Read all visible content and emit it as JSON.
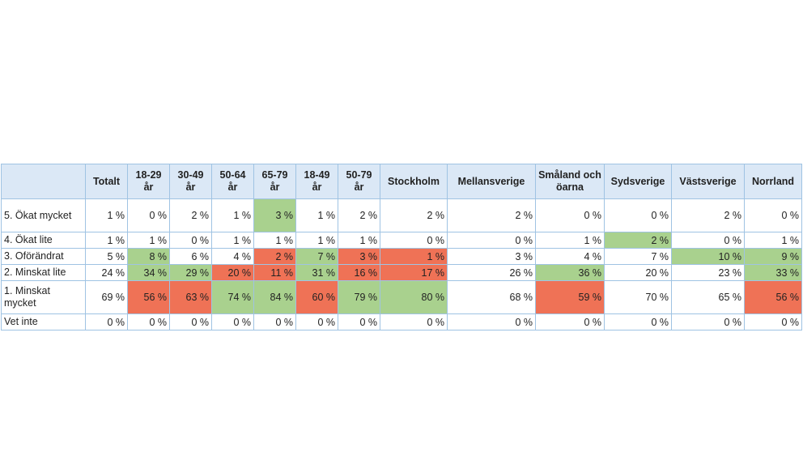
{
  "table": {
    "headers": [
      "",
      "Totalt",
      "18-29 år",
      "30-49 år",
      "50-64 år",
      "65-79 år",
      "18-49 år",
      "50-79 år",
      "Stockholm",
      "Mellansverige",
      "Småland och öarna",
      "Sydsverige",
      "Västsverige",
      "Norrland"
    ],
    "rows": [
      {
        "label": "5. Ökat mycket",
        "values": [
          "1 %",
          "0 %",
          "2 %",
          "1 %",
          "3 %",
          "1 %",
          "2 %",
          "2 %",
          "2 %",
          "0 %",
          "0 %",
          "2 %",
          "0 %"
        ]
      },
      {
        "label": "4. Ökat lite",
        "values": [
          "1 %",
          "1 %",
          "0 %",
          "1 %",
          "1 %",
          "1 %",
          "1 %",
          "0 %",
          "0 %",
          "1 %",
          "2 %",
          "0 %",
          "1 %"
        ]
      },
      {
        "label": "3. Oförändrat",
        "values": [
          "5 %",
          "8 %",
          "6 %",
          "4 %",
          "2 %",
          "7 %",
          "3 %",
          "1 %",
          "3 %",
          "4 %",
          "7 %",
          "10 %",
          "9 %"
        ]
      },
      {
        "label": "2. Minskat lite",
        "values": [
          "24 %",
          "34 %",
          "29 %",
          "20 %",
          "11 %",
          "31 %",
          "16 %",
          "17 %",
          "26 %",
          "36 %",
          "20 %",
          "23 %",
          "33 %"
        ]
      },
      {
        "label": "1. Minskat mycket",
        "values": [
          "69 %",
          "56 %",
          "63 %",
          "74 %",
          "84 %",
          "60 %",
          "79 %",
          "80 %",
          "68 %",
          "59 %",
          "70 %",
          "65 %",
          "56 %"
        ]
      },
      {
        "label": "Vet inte",
        "values": [
          "0 %",
          "0 %",
          "0 %",
          "0 %",
          "0 %",
          "0 %",
          "0 %",
          "0 %",
          "0 %",
          "0 %",
          "0 %",
          "0 %",
          "0 %"
        ]
      }
    ],
    "highlights": [
      [
        "",
        "",
        "",
        "",
        "green",
        "",
        "",
        "",
        "",
        "",
        "",
        "",
        ""
      ],
      [
        "",
        "",
        "",
        "",
        "",
        "",
        "",
        "",
        "",
        "",
        "green",
        "",
        ""
      ],
      [
        "",
        "green",
        "",
        "",
        "red",
        "green",
        "red",
        "red",
        "",
        "",
        "",
        "green",
        "green"
      ],
      [
        "",
        "green",
        "green",
        "red",
        "red",
        "green",
        "red",
        "red",
        "",
        "green",
        "",
        "",
        "green"
      ],
      [
        "",
        "red",
        "red",
        "green",
        "green",
        "red",
        "green",
        "green",
        "",
        "red",
        "",
        "",
        "red"
      ],
      [
        "",
        "",
        "",
        "",
        "",
        "",
        "",
        "",
        "",
        "",
        "",
        "",
        ""
      ]
    ]
  },
  "colors": {
    "header_bg": "#dbe8f6",
    "border": "#9fc3e3",
    "green": "#a9d18e",
    "red": "#ef7256"
  }
}
